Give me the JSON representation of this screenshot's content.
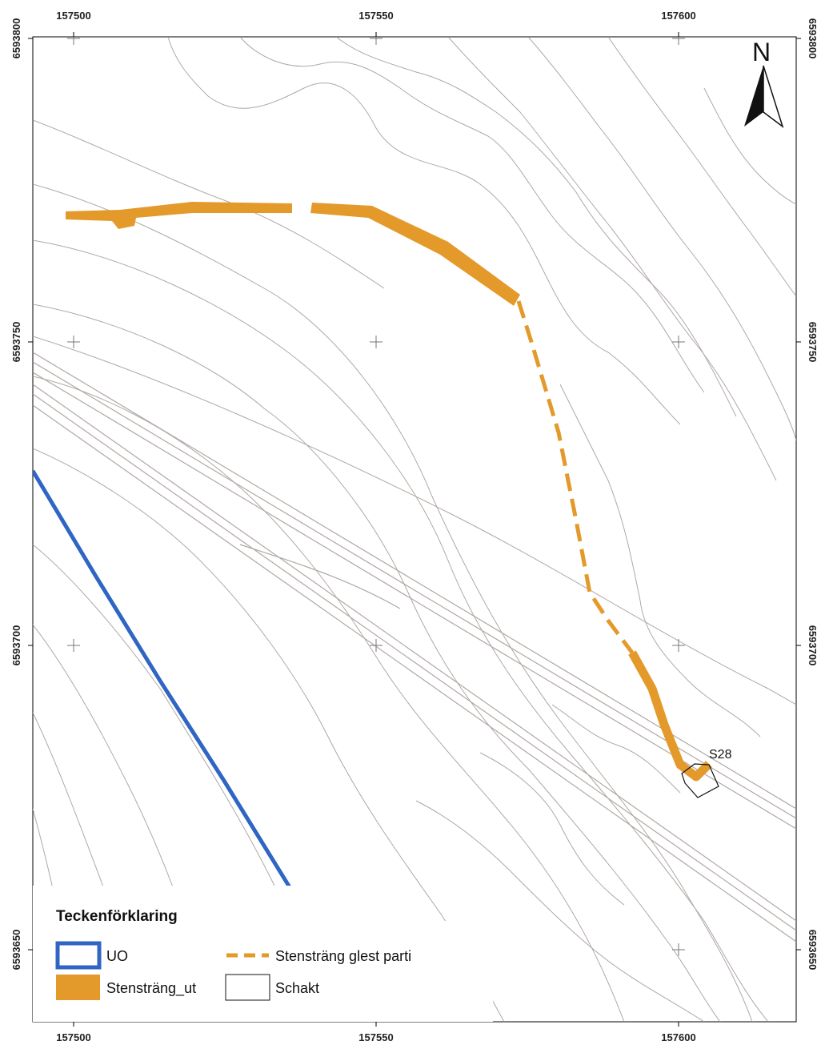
{
  "map": {
    "x_ticks": [
      "157500",
      "157550",
      "157600"
    ],
    "y_ticks": [
      "6593800",
      "6593750",
      "6593700",
      "6593650"
    ],
    "north_label": "N",
    "feature_label": "S28",
    "colors": {
      "uo": "#2f66c3",
      "stenstrang": "#e39a2b",
      "contour": "#b0a8a4",
      "frame": "#000000"
    }
  },
  "legend": {
    "title": "Teckenförklaring",
    "items": [
      {
        "label": "UO",
        "symbol": "blue-outline-box"
      },
      {
        "label": "Stensträng glest parti",
        "symbol": "orange-dashed-line"
      },
      {
        "label": "Stensträng_ut",
        "symbol": "orange-filled-box"
      },
      {
        "label": "Schakt",
        "symbol": "black-outline-box"
      }
    ]
  }
}
